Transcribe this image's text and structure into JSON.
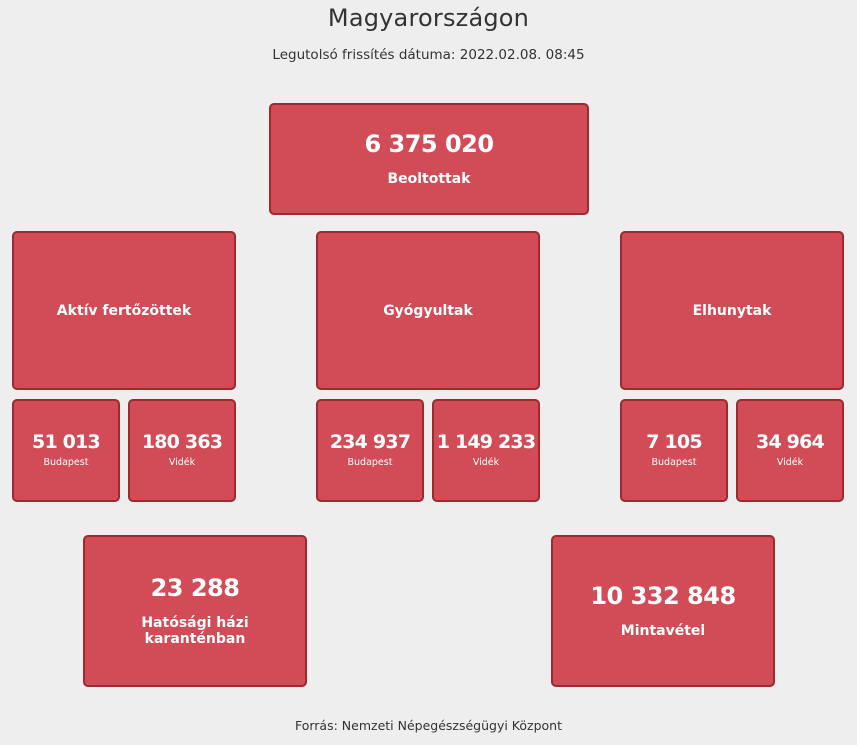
{
  "header": {
    "title": "Magyarországon",
    "updated": "Legutolsó frissítés dátuma: 2022.02.08. 08:45"
  },
  "vaccinated": {
    "value": "6 375 020",
    "label": "Beoltottak"
  },
  "groups": {
    "active": {
      "label": "Aktív fertőzöttek",
      "budapest": {
        "value": "51 013",
        "label": "Budapest"
      },
      "videk": {
        "value": "180 363",
        "label": "Vidék"
      }
    },
    "recovered": {
      "label": "Gyógyultak",
      "budapest": {
        "value": "234 937",
        "label": "Budapest"
      },
      "videk": {
        "value": "1 149 233",
        "label": "Vidék"
      }
    },
    "deceased": {
      "label": "Elhunytak",
      "budapest": {
        "value": "7 105",
        "label": "Budapest"
      },
      "videk": {
        "value": "34 964",
        "label": "Vidék"
      }
    }
  },
  "quarantine": {
    "value": "23 288",
    "label": "Hatósági házi karanténban"
  },
  "tests": {
    "value": "10 332 848",
    "label": "Mintavétel"
  },
  "footer": {
    "source": "Forrás: Nemzeti Népegészségügyi Központ"
  }
}
